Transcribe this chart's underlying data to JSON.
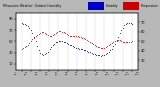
{
  "bg_color": "#ffffff",
  "plot_bg_color": "#ffffff",
  "grid_color": "#d0d0d0",
  "humidity": {
    "name": "Humidity",
    "color": "#0000cc",
    "y": [
      82,
      81,
      80,
      79,
      77,
      74,
      70,
      64,
      57,
      50,
      42,
      35,
      30,
      27,
      26,
      27,
      29,
      32,
      36,
      40,
      43,
      46,
      48,
      49,
      50,
      50,
      50,
      49,
      48,
      47,
      46,
      44,
      43,
      41,
      40,
      39,
      38,
      37,
      37,
      36,
      35,
      34,
      33,
      32,
      31,
      30,
      28,
      27,
      26,
      25,
      25,
      24,
      25,
      26,
      27,
      29,
      31,
      34,
      37,
      41,
      46,
      52,
      58,
      64,
      70,
      74,
      78,
      81,
      83,
      83,
      82,
      81
    ]
  },
  "temperature": {
    "name": "Temperature",
    "color": "#cc0000",
    "y": [
      42,
      43,
      44,
      45,
      46,
      48,
      50,
      52,
      54,
      56,
      57,
      58,
      59,
      60,
      60,
      59,
      58,
      57,
      56,
      56,
      57,
      58,
      59,
      60,
      61,
      61,
      60,
      60,
      59,
      58,
      57,
      56,
      56,
      56,
      56,
      56,
      56,
      55,
      55,
      54,
      53,
      52,
      51,
      50,
      49,
      48,
      47,
      46,
      45,
      44,
      44,
      43,
      43,
      43,
      44,
      45,
      46,
      47,
      48,
      49,
      50,
      50,
      51,
      51,
      50,
      49,
      49,
      49,
      49,
      49,
      49,
      50
    ]
  },
  "n_points": 72,
  "ylim_humidity": [
    0,
    100
  ],
  "ylim_temp": [
    20,
    80
  ],
  "yticks_left": [
    10,
    30,
    50,
    70,
    90
  ],
  "yticks_right": [
    30,
    40,
    50,
    60,
    70
  ],
  "legend_labels": [
    "Humidity",
    "Temperature"
  ],
  "legend_colors": [
    "#0000cc",
    "#cc0000"
  ],
  "outer_bg": "#b8b8b8",
  "markersize": 1.2
}
